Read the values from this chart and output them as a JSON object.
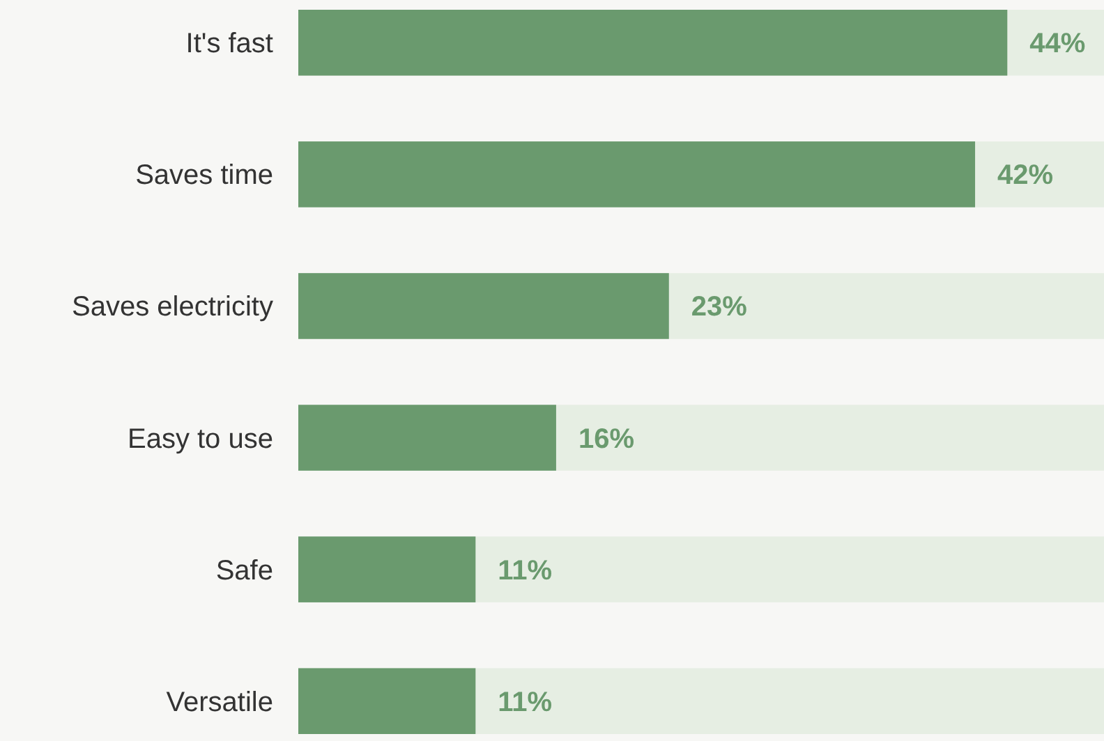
{
  "chart_data": {
    "type": "bar",
    "orientation": "horizontal",
    "categories": [
      "It's fast",
      "Saves time",
      "Saves electricity",
      "Easy to use",
      "Safe",
      "Versatile"
    ],
    "values": [
      44,
      42,
      23,
      16,
      11,
      11
    ],
    "value_labels": [
      "44%",
      "42%",
      "23%",
      "16%",
      "11%",
      "11%"
    ],
    "color": "#6a9a6e",
    "xlim": [
      0,
      50
    ],
    "tick_labels": "y"
  }
}
